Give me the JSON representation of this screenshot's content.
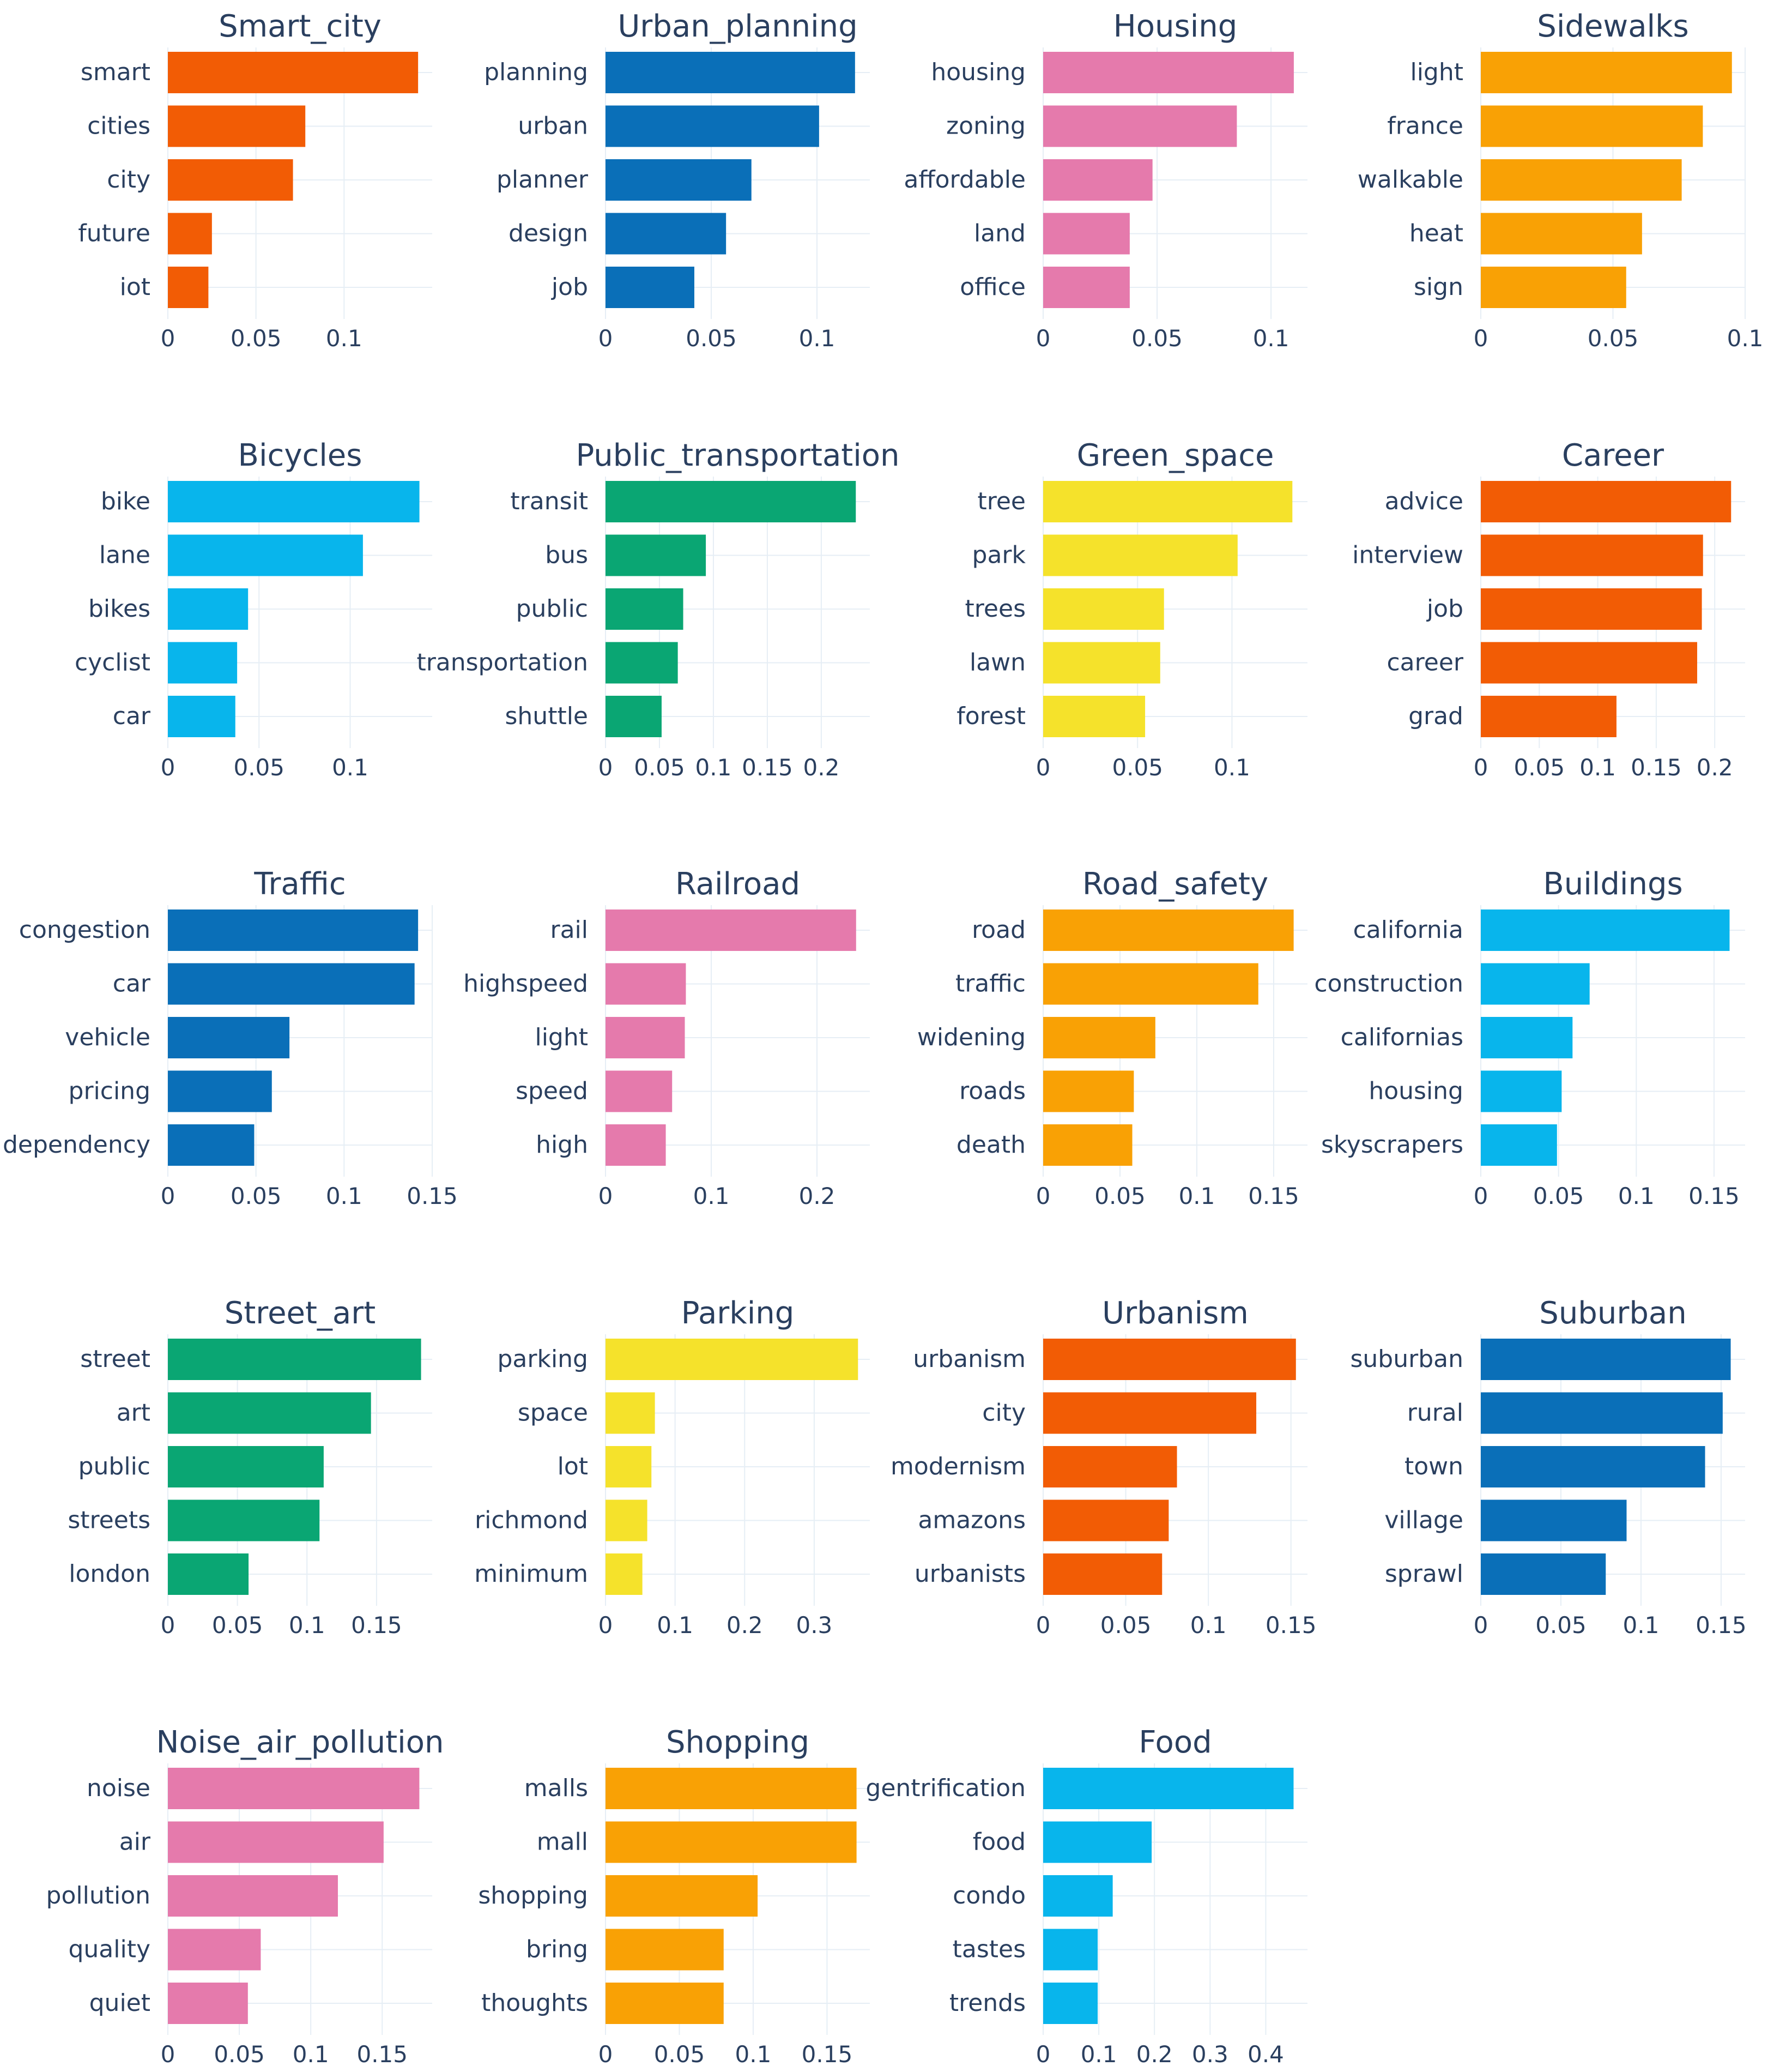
{
  "colors": {
    "orange": "#f25c05",
    "blue": "#0a6fb8",
    "pink": "#e57aac",
    "amber": "#f9a105",
    "cyan": "#08b5ec",
    "green": "#0aa673",
    "yellow": "#f5e22b"
  },
  "chart_data": [
    {
      "type": "bar",
      "orientation": "horizontal",
      "title": "Smart_city",
      "color": "orange",
      "categories": [
        "smart",
        "cities",
        "city",
        "future",
        "iot"
      ],
      "values": [
        0.142,
        0.078,
        0.071,
        0.025,
        0.023
      ],
      "xlim": [
        0,
        0.15
      ],
      "ticks": [
        0,
        0.05,
        0.1
      ],
      "tick_labels": [
        "0",
        "0.05",
        "0.1"
      ]
    },
    {
      "type": "bar",
      "orientation": "horizontal",
      "title": "Urban_planning",
      "color": "blue",
      "categories": [
        "planning",
        "urban",
        "planner",
        "design",
        "job"
      ],
      "values": [
        0.118,
        0.101,
        0.069,
        0.057,
        0.042
      ],
      "xlim": [
        0,
        0.125
      ],
      "ticks": [
        0,
        0.05,
        0.1
      ],
      "tick_labels": [
        "0",
        "0.05",
        "0.1"
      ]
    },
    {
      "type": "bar",
      "orientation": "horizontal",
      "title": "Housing",
      "color": "pink",
      "categories": [
        "housing",
        "zoning",
        "affordable",
        "land",
        "office"
      ],
      "values": [
        0.11,
        0.085,
        0.048,
        0.038,
        0.038
      ],
      "xlim": [
        0,
        0.116
      ],
      "ticks": [
        0,
        0.05,
        0.1
      ],
      "tick_labels": [
        "0",
        "0.05",
        "0.1"
      ]
    },
    {
      "type": "bar",
      "orientation": "horizontal",
      "title": "Sidewalks",
      "color": "amber",
      "categories": [
        "light",
        "france",
        "walkable",
        "heat",
        "sign"
      ],
      "values": [
        0.095,
        0.084,
        0.076,
        0.061,
        0.055
      ],
      "xlim": [
        0,
        0.1
      ],
      "ticks": [
        0,
        0.05,
        0.1
      ],
      "tick_labels": [
        "0",
        "0.05",
        "0.1"
      ]
    },
    {
      "type": "bar",
      "orientation": "horizontal",
      "title": "Bicycles",
      "color": "cyan",
      "categories": [
        "bike",
        "lane",
        "bikes",
        "cyclist",
        "car"
      ],
      "values": [
        0.138,
        0.107,
        0.044,
        0.038,
        0.037
      ],
      "xlim": [
        0,
        0.145
      ],
      "ticks": [
        0,
        0.05,
        0.1
      ],
      "tick_labels": [
        "0",
        "0.05",
        "0.1"
      ]
    },
    {
      "type": "bar",
      "orientation": "horizontal",
      "title": "Public_transportation",
      "color": "green",
      "categories": [
        "transit",
        "bus",
        "public",
        "transportation",
        "shuttle"
      ],
      "values": [
        0.232,
        0.093,
        0.072,
        0.067,
        0.052
      ],
      "xlim": [
        0,
        0.245
      ],
      "ticks": [
        0,
        0.05,
        0.1,
        0.15,
        0.2
      ],
      "tick_labels": [
        "0",
        "0.05",
        "0.1",
        "0.15",
        "0.2"
      ]
    },
    {
      "type": "bar",
      "orientation": "horizontal",
      "title": "Green_space",
      "color": "yellow",
      "categories": [
        "tree",
        "park",
        "trees",
        "lawn",
        "forest"
      ],
      "values": [
        0.132,
        0.103,
        0.064,
        0.062,
        0.054
      ],
      "xlim": [
        0,
        0.14
      ],
      "ticks": [
        0,
        0.05,
        0.1
      ],
      "tick_labels": [
        "0",
        "0.05",
        "0.1"
      ]
    },
    {
      "type": "bar",
      "orientation": "horizontal",
      "title": "Career",
      "color": "orange",
      "categories": [
        "advice",
        "interview",
        "job",
        "career",
        "grad"
      ],
      "values": [
        0.214,
        0.19,
        0.189,
        0.185,
        0.116
      ],
      "xlim": [
        0,
        0.226
      ],
      "ticks": [
        0,
        0.05,
        0.1,
        0.15,
        0.2
      ],
      "tick_labels": [
        "0",
        "0.05",
        "0.1",
        "0.15",
        "0.2"
      ]
    },
    {
      "type": "bar",
      "orientation": "horizontal",
      "title": "Traffic",
      "color": "blue",
      "categories": [
        "congestion",
        "car",
        "vehicle",
        "pricing",
        "dependency"
      ],
      "values": [
        0.142,
        0.14,
        0.069,
        0.059,
        0.049
      ],
      "xlim": [
        0,
        0.15
      ],
      "ticks": [
        0,
        0.05,
        0.1,
        0.15
      ],
      "tick_labels": [
        "0",
        "0.05",
        "0.1",
        "0.15"
      ]
    },
    {
      "type": "bar",
      "orientation": "horizontal",
      "title": "Railroad",
      "color": "pink",
      "categories": [
        "rail",
        "highspeed",
        "light",
        "speed",
        "high"
      ],
      "values": [
        0.237,
        0.076,
        0.075,
        0.063,
        0.057
      ],
      "xlim": [
        0,
        0.25
      ],
      "ticks": [
        0,
        0.1,
        0.2
      ],
      "tick_labels": [
        "0",
        "0.1",
        "0.2"
      ]
    },
    {
      "type": "bar",
      "orientation": "horizontal",
      "title": "Road_safety",
      "color": "amber",
      "categories": [
        "road",
        "traffic",
        "widening",
        "roads",
        "death"
      ],
      "values": [
        0.163,
        0.14,
        0.073,
        0.059,
        0.058
      ],
      "xlim": [
        0,
        0.172
      ],
      "ticks": [
        0,
        0.05,
        0.1,
        0.15
      ],
      "tick_labels": [
        "0",
        "0.05",
        "0.1",
        "0.15"
      ]
    },
    {
      "type": "bar",
      "orientation": "horizontal",
      "title": "Buildings",
      "color": "cyan",
      "categories": [
        "california",
        "construction",
        "californias",
        "housing",
        "skyscrapers"
      ],
      "values": [
        0.16,
        0.07,
        0.059,
        0.052,
        0.049
      ],
      "xlim": [
        0,
        0.17
      ],
      "ticks": [
        0,
        0.05,
        0.1,
        0.15
      ],
      "tick_labels": [
        "0",
        "0.05",
        "0.1",
        "0.15"
      ]
    },
    {
      "type": "bar",
      "orientation": "horizontal",
      "title": "Street_art",
      "color": "green",
      "categories": [
        "street",
        "art",
        "public",
        "streets",
        "london"
      ],
      "values": [
        0.182,
        0.146,
        0.112,
        0.109,
        0.058
      ],
      "xlim": [
        0,
        0.19
      ],
      "ticks": [
        0,
        0.05,
        0.1,
        0.15
      ],
      "tick_labels": [
        "0",
        "0.05",
        "0.1",
        "0.15"
      ]
    },
    {
      "type": "bar",
      "orientation": "horizontal",
      "title": "Parking",
      "color": "yellow",
      "categories": [
        "parking",
        "space",
        "lot",
        "richmond",
        "minimum"
      ],
      "values": [
        0.363,
        0.071,
        0.066,
        0.06,
        0.053
      ],
      "xlim": [
        0,
        0.38
      ],
      "ticks": [
        0,
        0.1,
        0.2,
        0.3
      ],
      "tick_labels": [
        "0",
        "0.1",
        "0.2",
        "0.3"
      ]
    },
    {
      "type": "bar",
      "orientation": "horizontal",
      "title": "Urbanism",
      "color": "orange",
      "categories": [
        "urbanism",
        "city",
        "modernism",
        "amazons",
        "urbanists"
      ],
      "values": [
        0.153,
        0.129,
        0.081,
        0.076,
        0.072
      ],
      "xlim": [
        0,
        0.16
      ],
      "ticks": [
        0,
        0.05,
        0.1,
        0.15
      ],
      "tick_labels": [
        "0",
        "0.05",
        "0.1",
        "0.15"
      ]
    },
    {
      "type": "bar",
      "orientation": "horizontal",
      "title": "Suburban",
      "color": "blue",
      "categories": [
        "suburban",
        "rural",
        "town",
        "village",
        "sprawl"
      ],
      "values": [
        0.156,
        0.151,
        0.14,
        0.091,
        0.078
      ],
      "xlim": [
        0,
        0.165
      ],
      "ticks": [
        0,
        0.05,
        0.1,
        0.15
      ],
      "tick_labels": [
        "0",
        "0.05",
        "0.1",
        "0.15"
      ]
    },
    {
      "type": "bar",
      "orientation": "horizontal",
      "title": "Noise_air_pollution",
      "color": "pink",
      "categories": [
        "noise",
        "air",
        "pollution",
        "quality",
        "quiet"
      ],
      "values": [
        0.176,
        0.151,
        0.119,
        0.065,
        0.056
      ],
      "xlim": [
        0,
        0.185
      ],
      "ticks": [
        0,
        0.05,
        0.1,
        0.15
      ],
      "tick_labels": [
        "0",
        "0.05",
        "0.1",
        "0.15"
      ]
    },
    {
      "type": "bar",
      "orientation": "horizontal",
      "title": "Shopping",
      "color": "amber",
      "categories": [
        "malls",
        "mall",
        "shopping",
        "bring",
        "thoughts"
      ],
      "values": [
        0.17,
        0.17,
        0.103,
        0.08,
        0.08
      ],
      "xlim": [
        0,
        0.179
      ],
      "ticks": [
        0,
        0.05,
        0.1,
        0.15
      ],
      "tick_labels": [
        "0",
        "0.05",
        "0.1",
        "0.15"
      ]
    },
    {
      "type": "bar",
      "orientation": "horizontal",
      "title": "Food",
      "color": "cyan",
      "categories": [
        "gentrification",
        "food",
        "condo",
        "tastes",
        "trends"
      ],
      "values": [
        0.45,
        0.195,
        0.125,
        0.098,
        0.098
      ],
      "xlim": [
        0,
        0.475
      ],
      "ticks": [
        0,
        0.1,
        0.2,
        0.3,
        0.4
      ],
      "tick_labels": [
        "0",
        "0.1",
        "0.2",
        "0.3",
        "0.4"
      ]
    }
  ]
}
